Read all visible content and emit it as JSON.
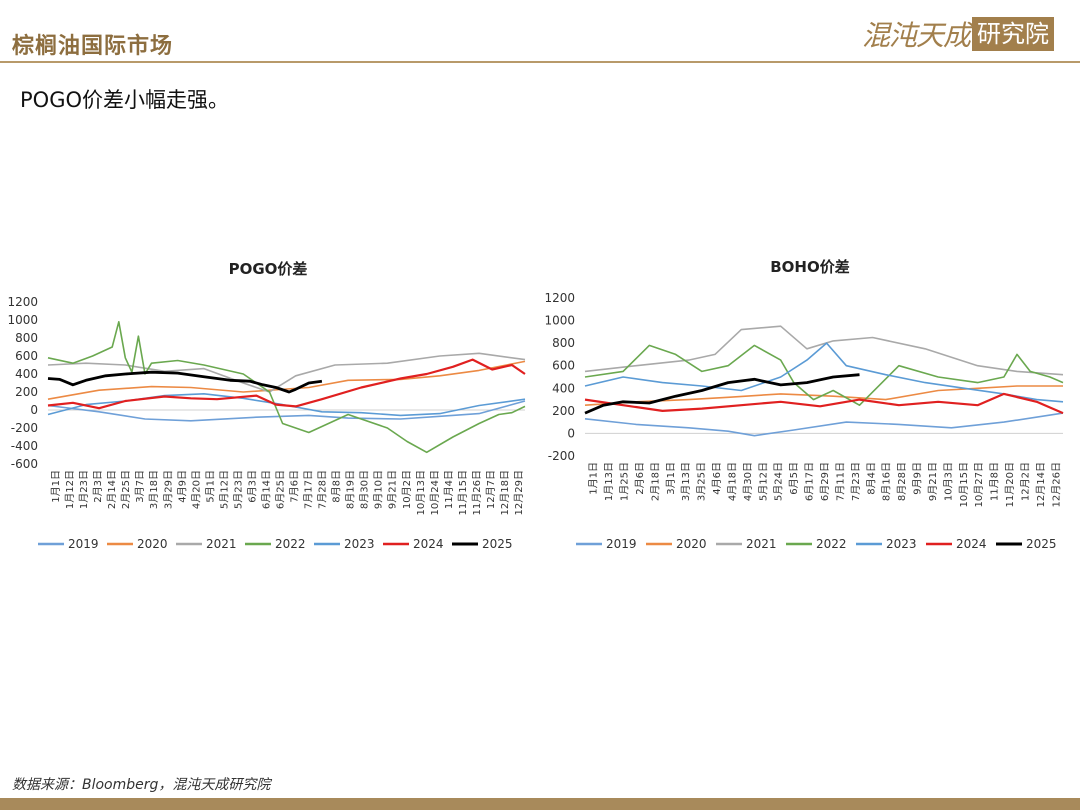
{
  "header": {
    "title": "棕榈油国际市场",
    "logo_left": "混沌天成",
    "logo_right": "研究院"
  },
  "subtitle": "POGO价差小幅走强。",
  "source": "数据来源：Bloomberg，混沌天成研究院",
  "colors": {
    "2019": "#6fa0d8",
    "2020": "#ec8a44",
    "2021": "#a9a9a9",
    "2022": "#6aa84f",
    "2023": "#5b9bd5",
    "2024": "#e02020",
    "2025": "#000000",
    "brand": "#a88a5b"
  },
  "chart_data": [
    {
      "type": "line",
      "title": "POGO价差",
      "ylim": [
        -600,
        1200
      ],
      "yticks": [
        -600,
        -400,
        -200,
        0,
        200,
        400,
        600,
        800,
        1000,
        1200
      ],
      "ytick_labels": [
        "-600",
        "-400",
        "-200",
        "0",
        "200",
        "400",
        "600",
        "800",
        "1000",
        "1200"
      ],
      "xtick_labels": [
        "1月1日",
        "1月12日",
        "1月23日",
        "2月3日",
        "2月14日",
        "2月25日",
        "3月7日",
        "3月18日",
        "3月29日",
        "4月9日",
        "4月20日",
        "5月1日",
        "5月12日",
        "5月23日",
        "6月3日",
        "6月14日",
        "6月25日",
        "7月6日",
        "7月17日",
        "7月28日",
        "8月8日",
        "8月19日",
        "8月30日",
        "9月10日",
        "9月21日",
        "10月2日",
        "10月13日",
        "10月24日",
        "11月4日",
        "11月15日",
        "11月26日",
        "12月7日",
        "12月18日",
        "12月29日"
      ],
      "x_day_range": [
        1,
        365
      ],
      "legend": "bottom",
      "series": [
        {
          "name": "2019",
          "x": [
            1,
            40,
            75,
            110,
            160,
            200,
            230,
            270,
            300,
            330,
            365
          ],
          "y": [
            50,
            -20,
            -100,
            -120,
            -80,
            -60,
            -90,
            -100,
            -70,
            -40,
            100
          ]
        },
        {
          "name": "2020",
          "x": [
            1,
            40,
            80,
            110,
            150,
            200,
            230,
            270,
            300,
            330,
            365
          ],
          "y": [
            120,
            220,
            260,
            250,
            200,
            250,
            330,
            340,
            380,
            440,
            540
          ]
        },
        {
          "name": "2021",
          "x": [
            1,
            30,
            60,
            90,
            120,
            150,
            170,
            190,
            220,
            260,
            300,
            330,
            365
          ],
          "y": [
            500,
            520,
            500,
            430,
            460,
            300,
            200,
            380,
            500,
            520,
            600,
            630,
            560
          ]
        },
        {
          "name": "2022",
          "x": [
            1,
            20,
            35,
            50,
            55,
            60,
            65,
            70,
            75,
            80,
            100,
            120,
            150,
            170,
            180,
            200,
            230,
            260,
            275,
            290,
            310,
            330,
            345,
            355,
            365
          ],
          "y": [
            580,
            520,
            600,
            700,
            980,
            580,
            420,
            820,
            400,
            520,
            550,
            500,
            400,
            200,
            -150,
            -250,
            -50,
            -200,
            -350,
            -470,
            -300,
            -150,
            -50,
            -30,
            40
          ]
        },
        {
          "name": "2023",
          "x": [
            1,
            30,
            60,
            90,
            120,
            150,
            180,
            210,
            240,
            270,
            300,
            330,
            365
          ],
          "y": [
            -50,
            60,
            100,
            160,
            180,
            130,
            60,
            -20,
            -30,
            -60,
            -40,
            50,
            120
          ]
        },
        {
          "name": "2024",
          "x": [
            1,
            20,
            40,
            60,
            90,
            110,
            130,
            160,
            175,
            190,
            210,
            240,
            270,
            290,
            310,
            325,
            340,
            355,
            365
          ],
          "y": [
            50,
            80,
            20,
            100,
            150,
            130,
            120,
            160,
            60,
            40,
            120,
            250,
            350,
            400,
            480,
            560,
            450,
            500,
            400
          ]
        },
        {
          "name": "2025",
          "x": [
            1,
            10,
            20,
            30,
            45,
            60,
            80,
            100,
            120,
            140,
            155,
            165,
            175,
            185,
            190,
            200,
            210
          ],
          "y": [
            350,
            340,
            280,
            330,
            380,
            400,
            420,
            410,
            370,
            330,
            320,
            280,
            250,
            200,
            230,
            300,
            320
          ]
        }
      ]
    },
    {
      "type": "line",
      "title": "BOHO价差",
      "ylim": [
        -200,
        1200
      ],
      "yticks": [
        -200,
        0,
        200,
        400,
        600,
        800,
        1000,
        1200
      ],
      "ytick_labels": [
        "-200",
        "0",
        "200",
        "400",
        "600",
        "800",
        "1000",
        "1200"
      ],
      "xtick_labels": [
        "1月1日",
        "1月13日",
        "1月25日",
        "2月6日",
        "2月18日",
        "3月1日",
        "3月13日",
        "3月25日",
        "4月6日",
        "4月18日",
        "4月30日",
        "5月12日",
        "5月24日",
        "6月5日",
        "6月17日",
        "6月29日",
        "7月11日",
        "7月23日",
        "8月4日",
        "8月16日",
        "8月28日",
        "9月9日",
        "9月21日",
        "10月3日",
        "10月15日",
        "10月27日",
        "11月8日",
        "11月20日",
        "12月2日",
        "12月14日",
        "12月26日"
      ],
      "x_day_range": [
        1,
        365
      ],
      "legend": "bottom",
      "series": [
        {
          "name": "2019",
          "x": [
            1,
            40,
            80,
            110,
            130,
            160,
            200,
            240,
            280,
            320,
            365
          ],
          "y": [
            130,
            80,
            50,
            20,
            -20,
            30,
            100,
            80,
            50,
            100,
            180
          ]
        },
        {
          "name": "2020",
          "x": [
            1,
            40,
            80,
            110,
            150,
            190,
            230,
            270,
            300,
            330,
            365
          ],
          "y": [
            250,
            280,
            300,
            320,
            350,
            330,
            300,
            380,
            400,
            420,
            420
          ]
        },
        {
          "name": "2021",
          "x": [
            1,
            40,
            80,
            100,
            120,
            150,
            170,
            190,
            220,
            260,
            300,
            330,
            365
          ],
          "y": [
            550,
            600,
            650,
            700,
            920,
            950,
            750,
            820,
            850,
            750,
            600,
            550,
            520
          ]
        },
        {
          "name": "2022",
          "x": [
            1,
            30,
            50,
            70,
            90,
            110,
            130,
            150,
            160,
            175,
            190,
            210,
            240,
            270,
            300,
            320,
            330,
            340,
            355,
            365
          ],
          "y": [
            500,
            550,
            780,
            700,
            550,
            600,
            780,
            650,
            450,
            300,
            380,
            250,
            600,
            500,
            450,
            500,
            700,
            550,
            500,
            450
          ]
        },
        {
          "name": "2023",
          "x": [
            1,
            30,
            60,
            90,
            120,
            150,
            170,
            185,
            200,
            230,
            260,
            290,
            320,
            345,
            365
          ],
          "y": [
            420,
            500,
            450,
            420,
            380,
            500,
            650,
            800,
            600,
            520,
            450,
            400,
            350,
            300,
            280
          ]
        },
        {
          "name": "2024",
          "x": [
            1,
            30,
            60,
            90,
            120,
            150,
            180,
            210,
            240,
            270,
            300,
            320,
            345,
            365
          ],
          "y": [
            300,
            250,
            200,
            220,
            250,
            280,
            240,
            300,
            250,
            280,
            250,
            350,
            280,
            180
          ]
        },
        {
          "name": "2025",
          "x": [
            1,
            15,
            30,
            50,
            70,
            90,
            110,
            130,
            150,
            170,
            190,
            210
          ],
          "y": [
            180,
            250,
            280,
            270,
            330,
            380,
            450,
            480,
            430,
            450,
            500,
            520
          ]
        }
      ]
    }
  ]
}
